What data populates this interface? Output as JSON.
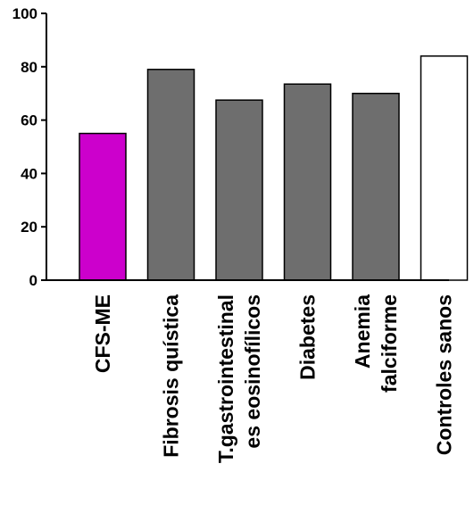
{
  "chart_data": {
    "type": "bar",
    "title": "",
    "xlabel": "",
    "ylabel": "",
    "ylim": [
      0,
      100
    ],
    "yticks": [
      0,
      20,
      40,
      60,
      80,
      100
    ],
    "grid": false,
    "categories": [
      [
        "CFS-ME"
      ],
      [
        "Fibrosis quística"
      ],
      [
        "T.gastrointestinal",
        "es eosinofílicos"
      ],
      [
        "Diabetes"
      ],
      [
        "Anemia",
        "falciforme"
      ],
      [
        "Controles sanos"
      ]
    ],
    "values": [
      55,
      79,
      67.5,
      73.5,
      70,
      84
    ],
    "colors": [
      "#cc00cc",
      "#6e6e6e",
      "#6e6e6e",
      "#6e6e6e",
      "#6e6e6e",
      "#ffffff"
    ]
  }
}
